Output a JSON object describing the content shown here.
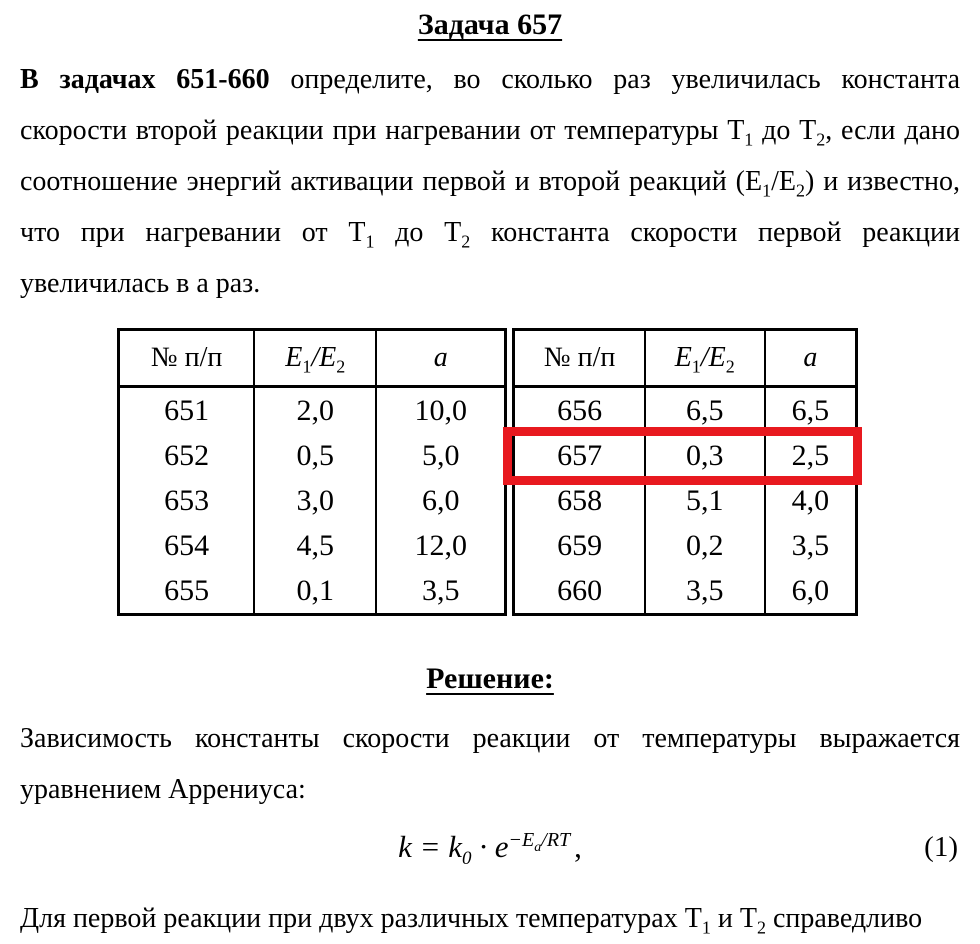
{
  "colors": {
    "highlight_red": "#e8191f",
    "text": "#000000",
    "background": "#ffffff"
  },
  "title": "Задача 657",
  "problem": {
    "lead_bold": "В задачах 651-660",
    "t1": " определите, во сколько раз увеличилась константа скорости второй реакции при нагревании от температуры Т",
    "s1": "1",
    "t2": " до Т",
    "s2": "2",
    "t3": ", если дано соотношение энергий активации первой и второй реакций (Е",
    "s3": "1",
    "t4": "/Е",
    "s4": "2",
    "t5": ") и известно, что при нагревании от Т",
    "s5": "1",
    "t6": " до Т",
    "s6": "2",
    "t7": " константа скорости первой реакции увеличилась в а раз."
  },
  "table": {
    "header_num": "№ п/п",
    "header_ratio": {
      "e1": "E",
      "sub1": "1",
      "slash": "/",
      "e2": "E",
      "sub2": "2"
    },
    "header_a": "a",
    "left_rows": [
      [
        "651",
        "2,0",
        "10,0"
      ],
      [
        "652",
        "0,5",
        "5,0"
      ],
      [
        "653",
        "3,0",
        "6,0"
      ],
      [
        "654",
        "4,5",
        "12,0"
      ],
      [
        "655",
        "0,1",
        "3,5"
      ]
    ],
    "right_rows": [
      [
        "656",
        "6,5",
        "6,5"
      ],
      [
        "657",
        "0,3",
        "2,5"
      ],
      [
        "658",
        "5,1",
        "4,0"
      ],
      [
        "659",
        "0,2",
        "3,5"
      ],
      [
        "660",
        "3,5",
        "6,0"
      ]
    ],
    "highlighted_problem": "657",
    "highlighted_values": {
      "ratio": "0,3",
      "a": "2,5"
    }
  },
  "solution": {
    "heading": "Решение:",
    "intro": "Зависимость константы скорости реакции от температуры выражается уравнением Аррениуса:"
  },
  "formula": {
    "k": "k",
    "eq": " = ",
    "k0": "k",
    "k0sub": "0",
    "dot": " · ",
    "e": "e",
    "minus": "−",
    "E": "E",
    "Esub": "a",
    "slash": "/",
    "RT": "RT",
    "comma": ",",
    "label": "(1)"
  },
  "closing": {
    "t1": "Для первой реакции при двух различных температурах Т",
    "s1": "1",
    "t2": " и Т",
    "s2": "2",
    "t3": " справедливо"
  }
}
